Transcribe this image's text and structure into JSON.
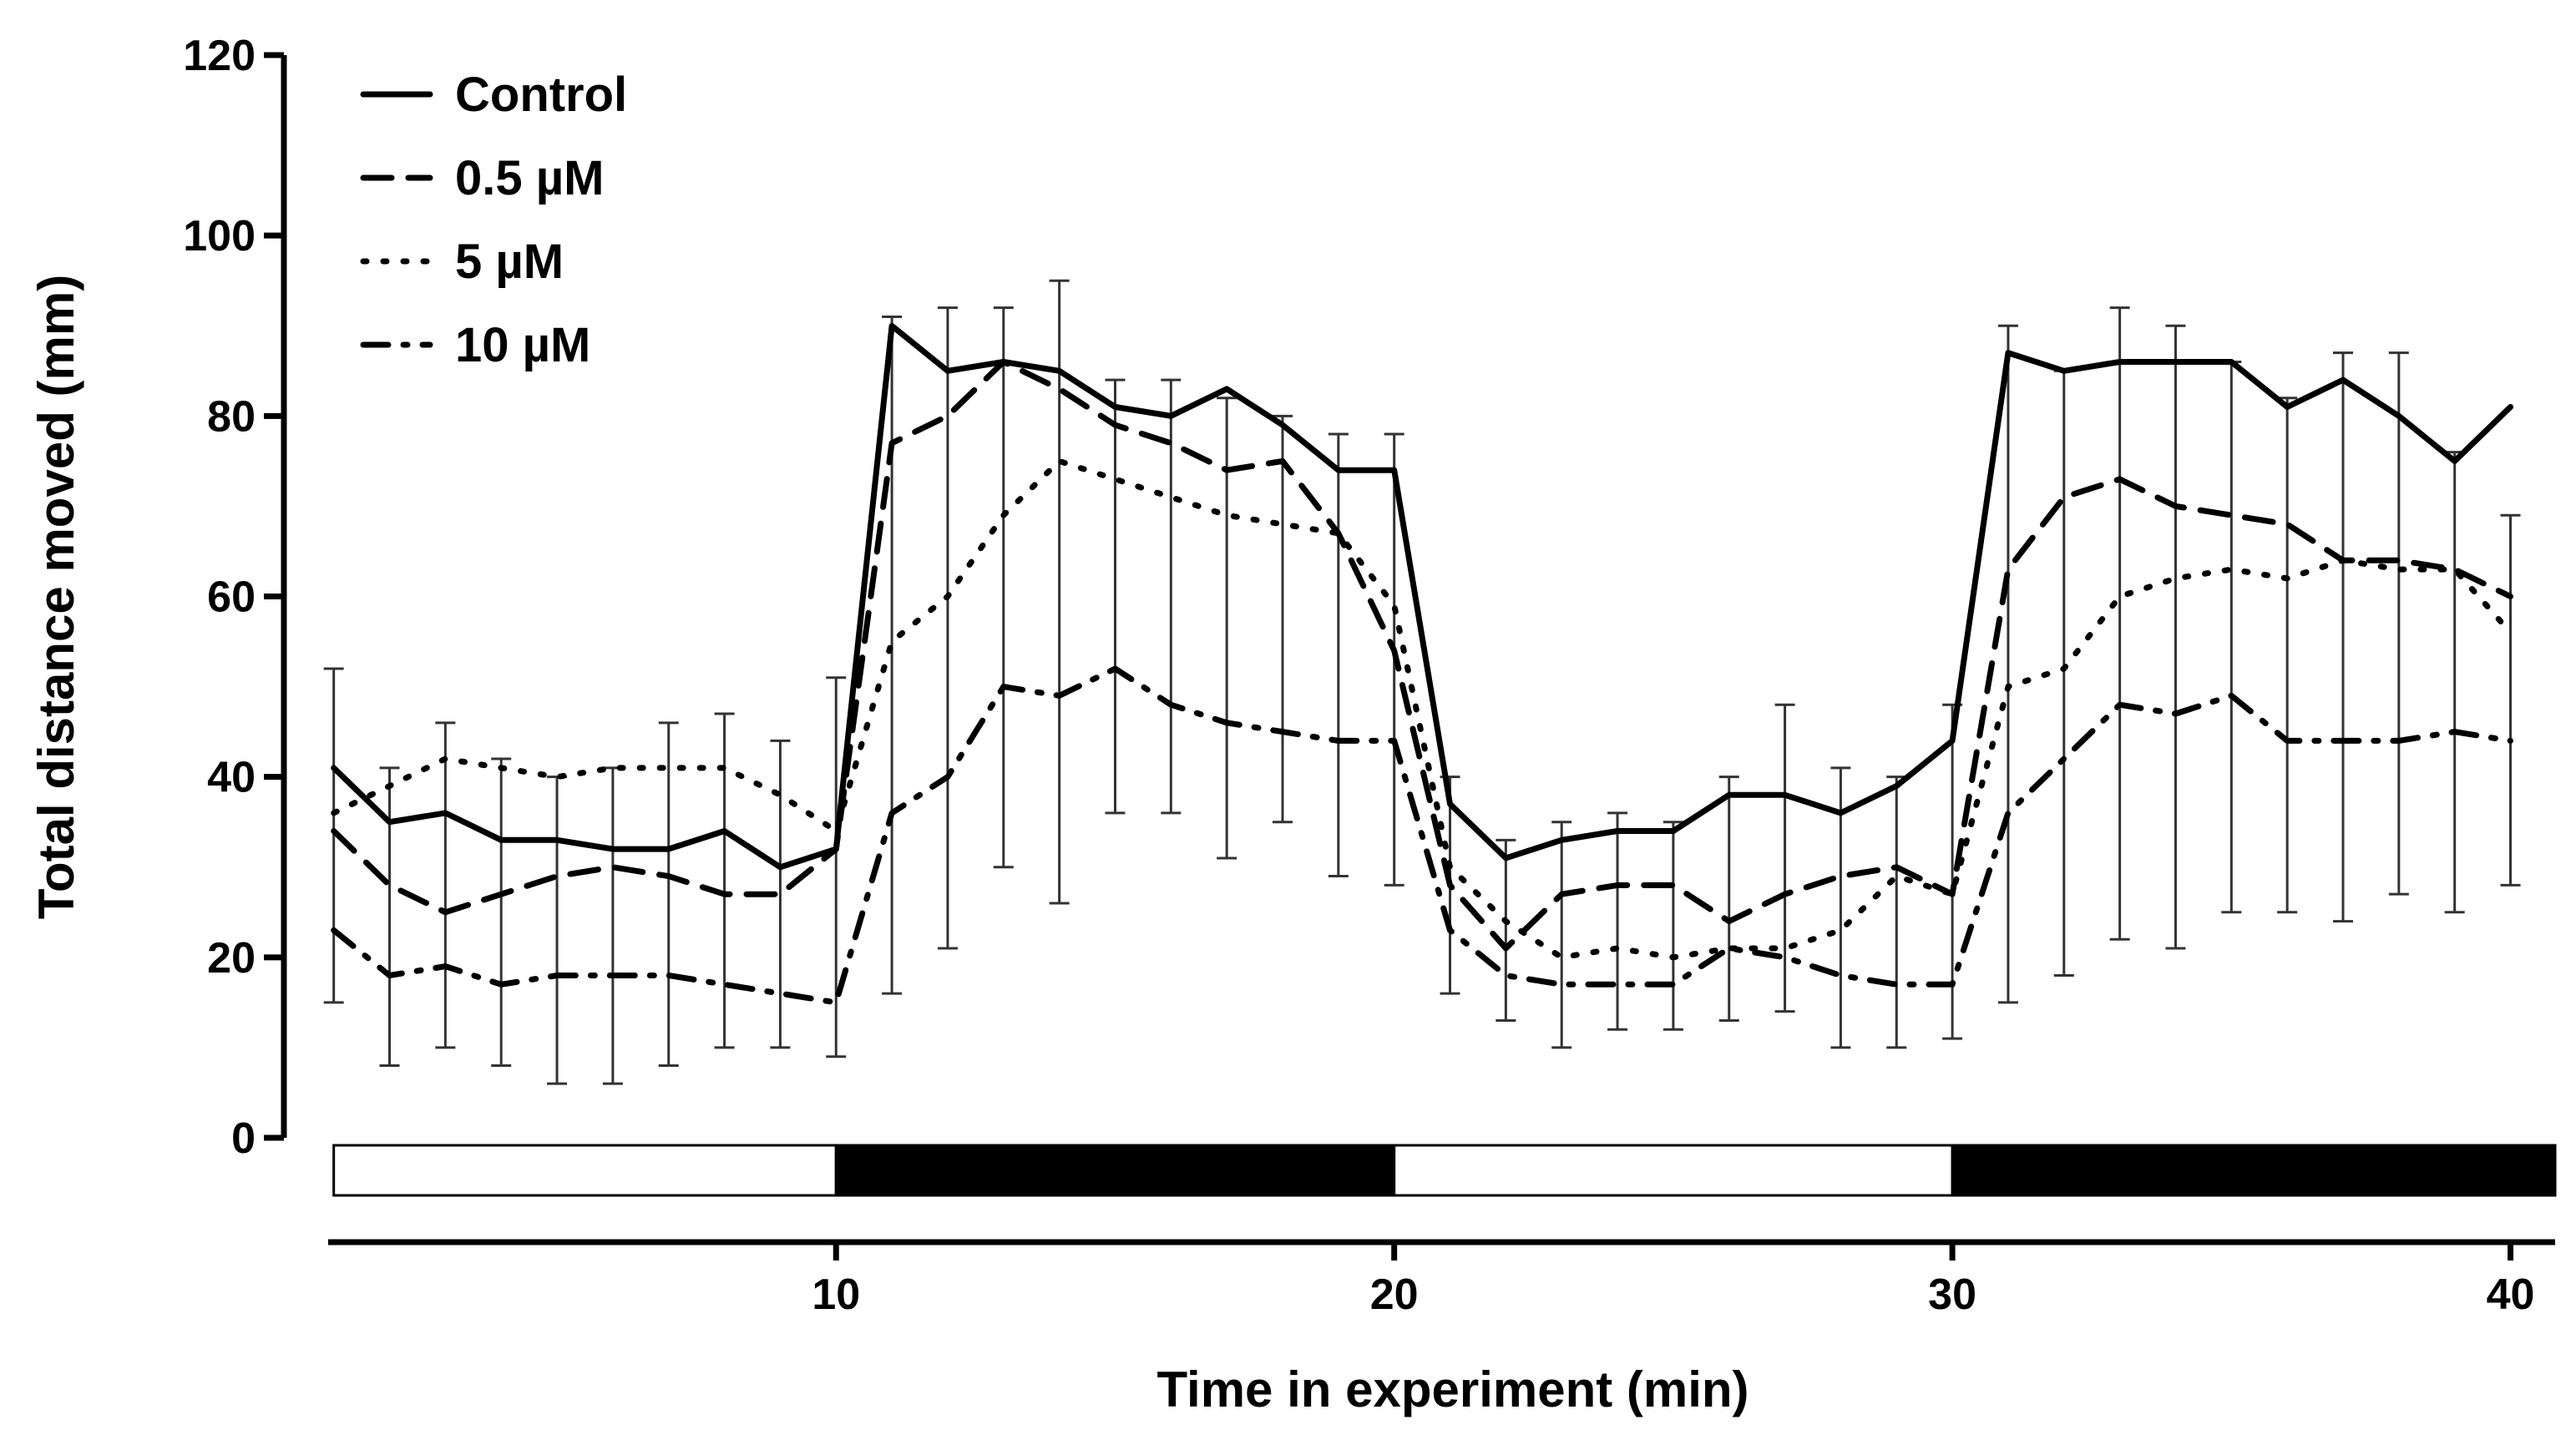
{
  "chart_data": {
    "type": "line",
    "title": "",
    "xlabel": "Time in experiment (min)",
    "ylabel": "Total distance moved (mm)",
    "xlim": [
      0.9,
      40.8
    ],
    "ylim": [
      0,
      120
    ],
    "xticks": [
      10,
      20,
      30,
      40
    ],
    "yticks": [
      0,
      20,
      40,
      60,
      80,
      100,
      120
    ],
    "grid": false,
    "legend_position": "top-left",
    "light_dark_bar": [
      {
        "from": 1,
        "to": 10,
        "phase": "light",
        "color": "#ffffff"
      },
      {
        "from": 10,
        "to": 20,
        "phase": "dark",
        "color": "#000000"
      },
      {
        "from": 20,
        "to": 30,
        "phase": "light",
        "color": "#ffffff"
      },
      {
        "from": 30,
        "to": 40.8,
        "phase": "dark",
        "color": "#000000"
      }
    ],
    "x": [
      1,
      2,
      3,
      4,
      5,
      6,
      7,
      8,
      9,
      10,
      11,
      12,
      13,
      14,
      15,
      16,
      17,
      18,
      19,
      20,
      21,
      22,
      23,
      24,
      25,
      26,
      27,
      28,
      29,
      30,
      31,
      32,
      33,
      34,
      35,
      36,
      37,
      38,
      39,
      40
    ],
    "series": [
      {
        "name": "Control",
        "style": "solid",
        "values": [
          41,
          35,
          36,
          33,
          33,
          32,
          32,
          34,
          30,
          32,
          90,
          85,
          86,
          85,
          81,
          80,
          83,
          79,
          74,
          74,
          37,
          31,
          33,
          34,
          34,
          38,
          38,
          36,
          39,
          44,
          87,
          85,
          86,
          86,
          86,
          81,
          84,
          80,
          75,
          81
        ],
        "errors": [
          11,
          6,
          5,
          5,
          2,
          2,
          2,
          1,
          5,
          5,
          2,
          2,
          1,
          6,
          3,
          3,
          0,
          1,
          3,
          4,
          3,
          2,
          2,
          2,
          1,
          3,
          3,
          2,
          3,
          4,
          4,
          1,
          6,
          5,
          1,
          1,
          4,
          7,
          2,
          1
        ]
      },
      {
        "name": "0.5 µM",
        "style": "dashed",
        "values": [
          34,
          28,
          25,
          27,
          29,
          30,
          29,
          27,
          27,
          32,
          77,
          80,
          86,
          83,
          79,
          77,
          74,
          75,
          67,
          54,
          28,
          21,
          27,
          28,
          28,
          24,
          27,
          29,
          30,
          27,
          63,
          71,
          73,
          70,
          69,
          68,
          64,
          64,
          63,
          60
        ]
      },
      {
        "name": "5 µM",
        "style": "dotted",
        "values": [
          36,
          39,
          42,
          41,
          40,
          41,
          41,
          41,
          38,
          34,
          55,
          60,
          69,
          75,
          73,
          71,
          69,
          68,
          67,
          59,
          30,
          24,
          20,
          21,
          20,
          21,
          21,
          23,
          29,
          27,
          50,
          52,
          60,
          62,
          63,
          62,
          64,
          63,
          63,
          56
        ]
      },
      {
        "name": "10 µM",
        "style": "dashdot",
        "values": [
          23,
          18,
          19,
          17,
          18,
          18,
          18,
          17,
          16,
          15,
          36,
          40,
          50,
          49,
          52,
          48,
          46,
          45,
          44,
          44,
          23,
          18,
          17,
          17,
          17,
          21,
          20,
          18,
          17,
          17,
          36,
          42,
          48,
          47,
          49,
          44,
          44,
          44,
          45,
          44
        ]
      }
    ],
    "error_bars_lower": [
      15,
      8,
      10,
      8,
      6,
      6,
      8,
      10,
      10,
      9,
      16,
      21,
      30,
      26,
      36,
      36,
      31,
      35,
      29,
      28,
      16,
      13,
      10,
      12,
      12,
      13,
      14,
      10,
      10,
      11,
      15,
      18,
      22,
      21,
      25,
      25,
      24,
      27,
      25,
      28
    ],
    "error_bars_upper": [
      52,
      41,
      46,
      42,
      40,
      41,
      46,
      47,
      44,
      51,
      91,
      92,
      92,
      95,
      84,
      84,
      82,
      80,
      78,
      78,
      40,
      33,
      35,
      36,
      35,
      40,
      48,
      41,
      40,
      48,
      90,
      85,
      92,
      90,
      86,
      82,
      87,
      87,
      76,
      69
    ]
  }
}
